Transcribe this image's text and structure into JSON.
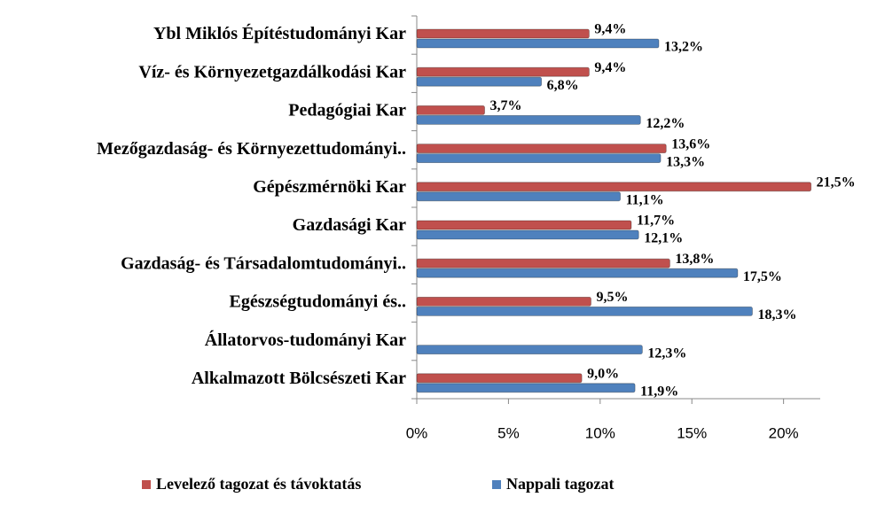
{
  "chart_data": {
    "type": "bar",
    "orientation": "horizontal",
    "categories": [
      "Ybl Miklós Építéstudományi Kar",
      "Víz- és Környezetgazdálkodási Kar",
      "Pedagógiai Kar",
      "Mezőgazdaság- és Környezettudományi..",
      "Gépészmérnöki Kar",
      "Gazdasági Kar",
      "Gazdaság- és Társadalomtudományi..",
      "Egészségtudományi és..",
      "Állatorvos-tudományi Kar",
      "Alkalmazott Bölcsészeti Kar"
    ],
    "series": [
      {
        "name": "Levelező tagozat és távoktatás",
        "color": "#c0504d",
        "values": [
          9.4,
          9.4,
          3.7,
          13.6,
          21.5,
          11.7,
          13.8,
          9.5,
          null,
          9.0
        ],
        "value_labels": [
          "9,4%",
          "9,4%",
          "3,7%",
          "13,6%",
          "21,5%",
          "11,7%",
          "13,8%",
          "9,5%",
          null,
          "9,0%"
        ]
      },
      {
        "name": "Nappali tagozat",
        "color": "#4f81bd",
        "values": [
          13.2,
          6.8,
          12.2,
          13.3,
          11.1,
          12.1,
          17.5,
          18.3,
          12.3,
          11.9
        ],
        "value_labels": [
          "13,2%",
          "6,8%",
          "12,2%",
          "13,3%",
          "11,1%",
          "12,1%",
          "17,5%",
          "18,3%",
          "12,3%",
          "11,9%"
        ]
      }
    ],
    "xlim": [
      0,
      22
    ],
    "xticks": [
      {
        "value": 0,
        "label": "0%"
      },
      {
        "value": 5,
        "label": "5%"
      },
      {
        "value": 10,
        "label": "10%"
      },
      {
        "value": 15,
        "label": "15%"
      },
      {
        "value": 20,
        "label": "20%"
      }
    ],
    "grid": false,
    "legend": "bottom"
  }
}
